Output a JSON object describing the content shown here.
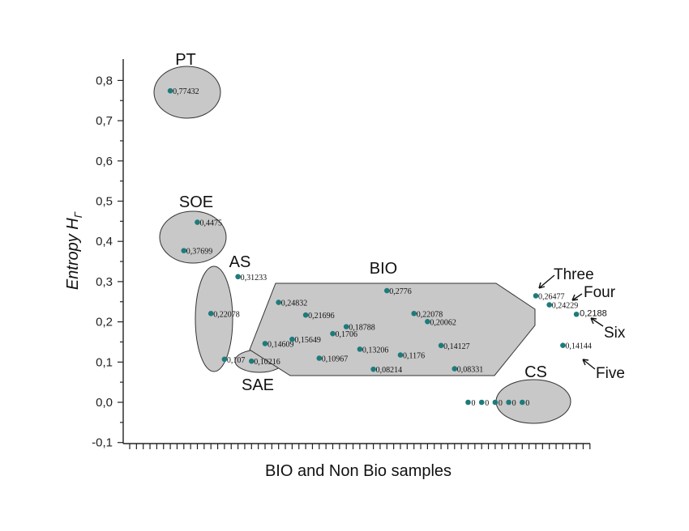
{
  "chart_data": {
    "type": "scatter",
    "xlabel": "BIO and Non Bio samples",
    "ylabel": "Entropy H",
    "ylabel_sub": "Γ",
    "ylim": [
      -0.1,
      0.9
    ],
    "yticks": [
      "-0,1",
      "0,0",
      "0,1",
      "0,2",
      "0,3",
      "0,4",
      "0,5",
      "0,6",
      "0,7",
      "0,8"
    ],
    "point_color": "#1e7b7b",
    "region_color": "#c8c8c8",
    "points": [
      {
        "x": 3,
        "y": 0.77432,
        "label": "0,77432"
      },
      {
        "x": 4,
        "y": 0.37699,
        "label": "0,37699"
      },
      {
        "x": 5,
        "y": 0.4475,
        "label": "0,4475"
      },
      {
        "x": 6,
        "y": 0.22078,
        "label": "0,22078"
      },
      {
        "x": 7,
        "y": 0.107,
        "label": "0,107"
      },
      {
        "x": 8,
        "y": 0.31233,
        "label": "0,31233"
      },
      {
        "x": 9,
        "y": 0.10216,
        "label": "0,10216"
      },
      {
        "x": 10,
        "y": 0.14609,
        "label": "0,14609"
      },
      {
        "x": 11,
        "y": 0.24832,
        "label": "0,24832"
      },
      {
        "x": 12,
        "y": 0.15649,
        "label": "0,15649"
      },
      {
        "x": 13,
        "y": 0.21696,
        "label": "0,21696"
      },
      {
        "x": 14,
        "y": 0.10967,
        "label": "0,10967"
      },
      {
        "x": 15,
        "y": 0.1706,
        "label": "0,1706"
      },
      {
        "x": 16,
        "y": 0.18788,
        "label": "0,18788"
      },
      {
        "x": 17,
        "y": 0.13206,
        "label": "0,13206"
      },
      {
        "x": 18,
        "y": 0.08214,
        "label": "0,08214"
      },
      {
        "x": 19,
        "y": 0.2776,
        "label": "0,2776"
      },
      {
        "x": 20,
        "y": 0.1176,
        "label": "0,1176"
      },
      {
        "x": 21,
        "y": 0.22078,
        "label": "0,22078"
      },
      {
        "x": 22,
        "y": 0.20062,
        "label": "0,20062"
      },
      {
        "x": 23,
        "y": 0.14127,
        "label": "0,14127"
      },
      {
        "x": 24,
        "y": 0.08331,
        "label": "0,08331"
      },
      {
        "x": 25,
        "y": 0.0,
        "label": "0"
      },
      {
        "x": 26,
        "y": 0.0,
        "label": "0"
      },
      {
        "x": 27,
        "y": 0.0,
        "label": "0"
      },
      {
        "x": 28,
        "y": 0.0,
        "label": "0"
      },
      {
        "x": 29,
        "y": 0.0,
        "label": "0"
      },
      {
        "x": 30,
        "y": 0.26477,
        "label": "0,26477"
      },
      {
        "x": 31,
        "y": 0.24229,
        "label": "0,24229"
      },
      {
        "x": 32,
        "y": 0.14144,
        "label": "0,14144"
      },
      {
        "x": 33,
        "y": 0.2188,
        "label": "0,2188"
      }
    ],
    "groups": [
      "PT",
      "SOE",
      "AS",
      "SAE",
      "BIO",
      "CS"
    ],
    "annotations": [
      "Three",
      "Four",
      "Six",
      "Five"
    ]
  }
}
